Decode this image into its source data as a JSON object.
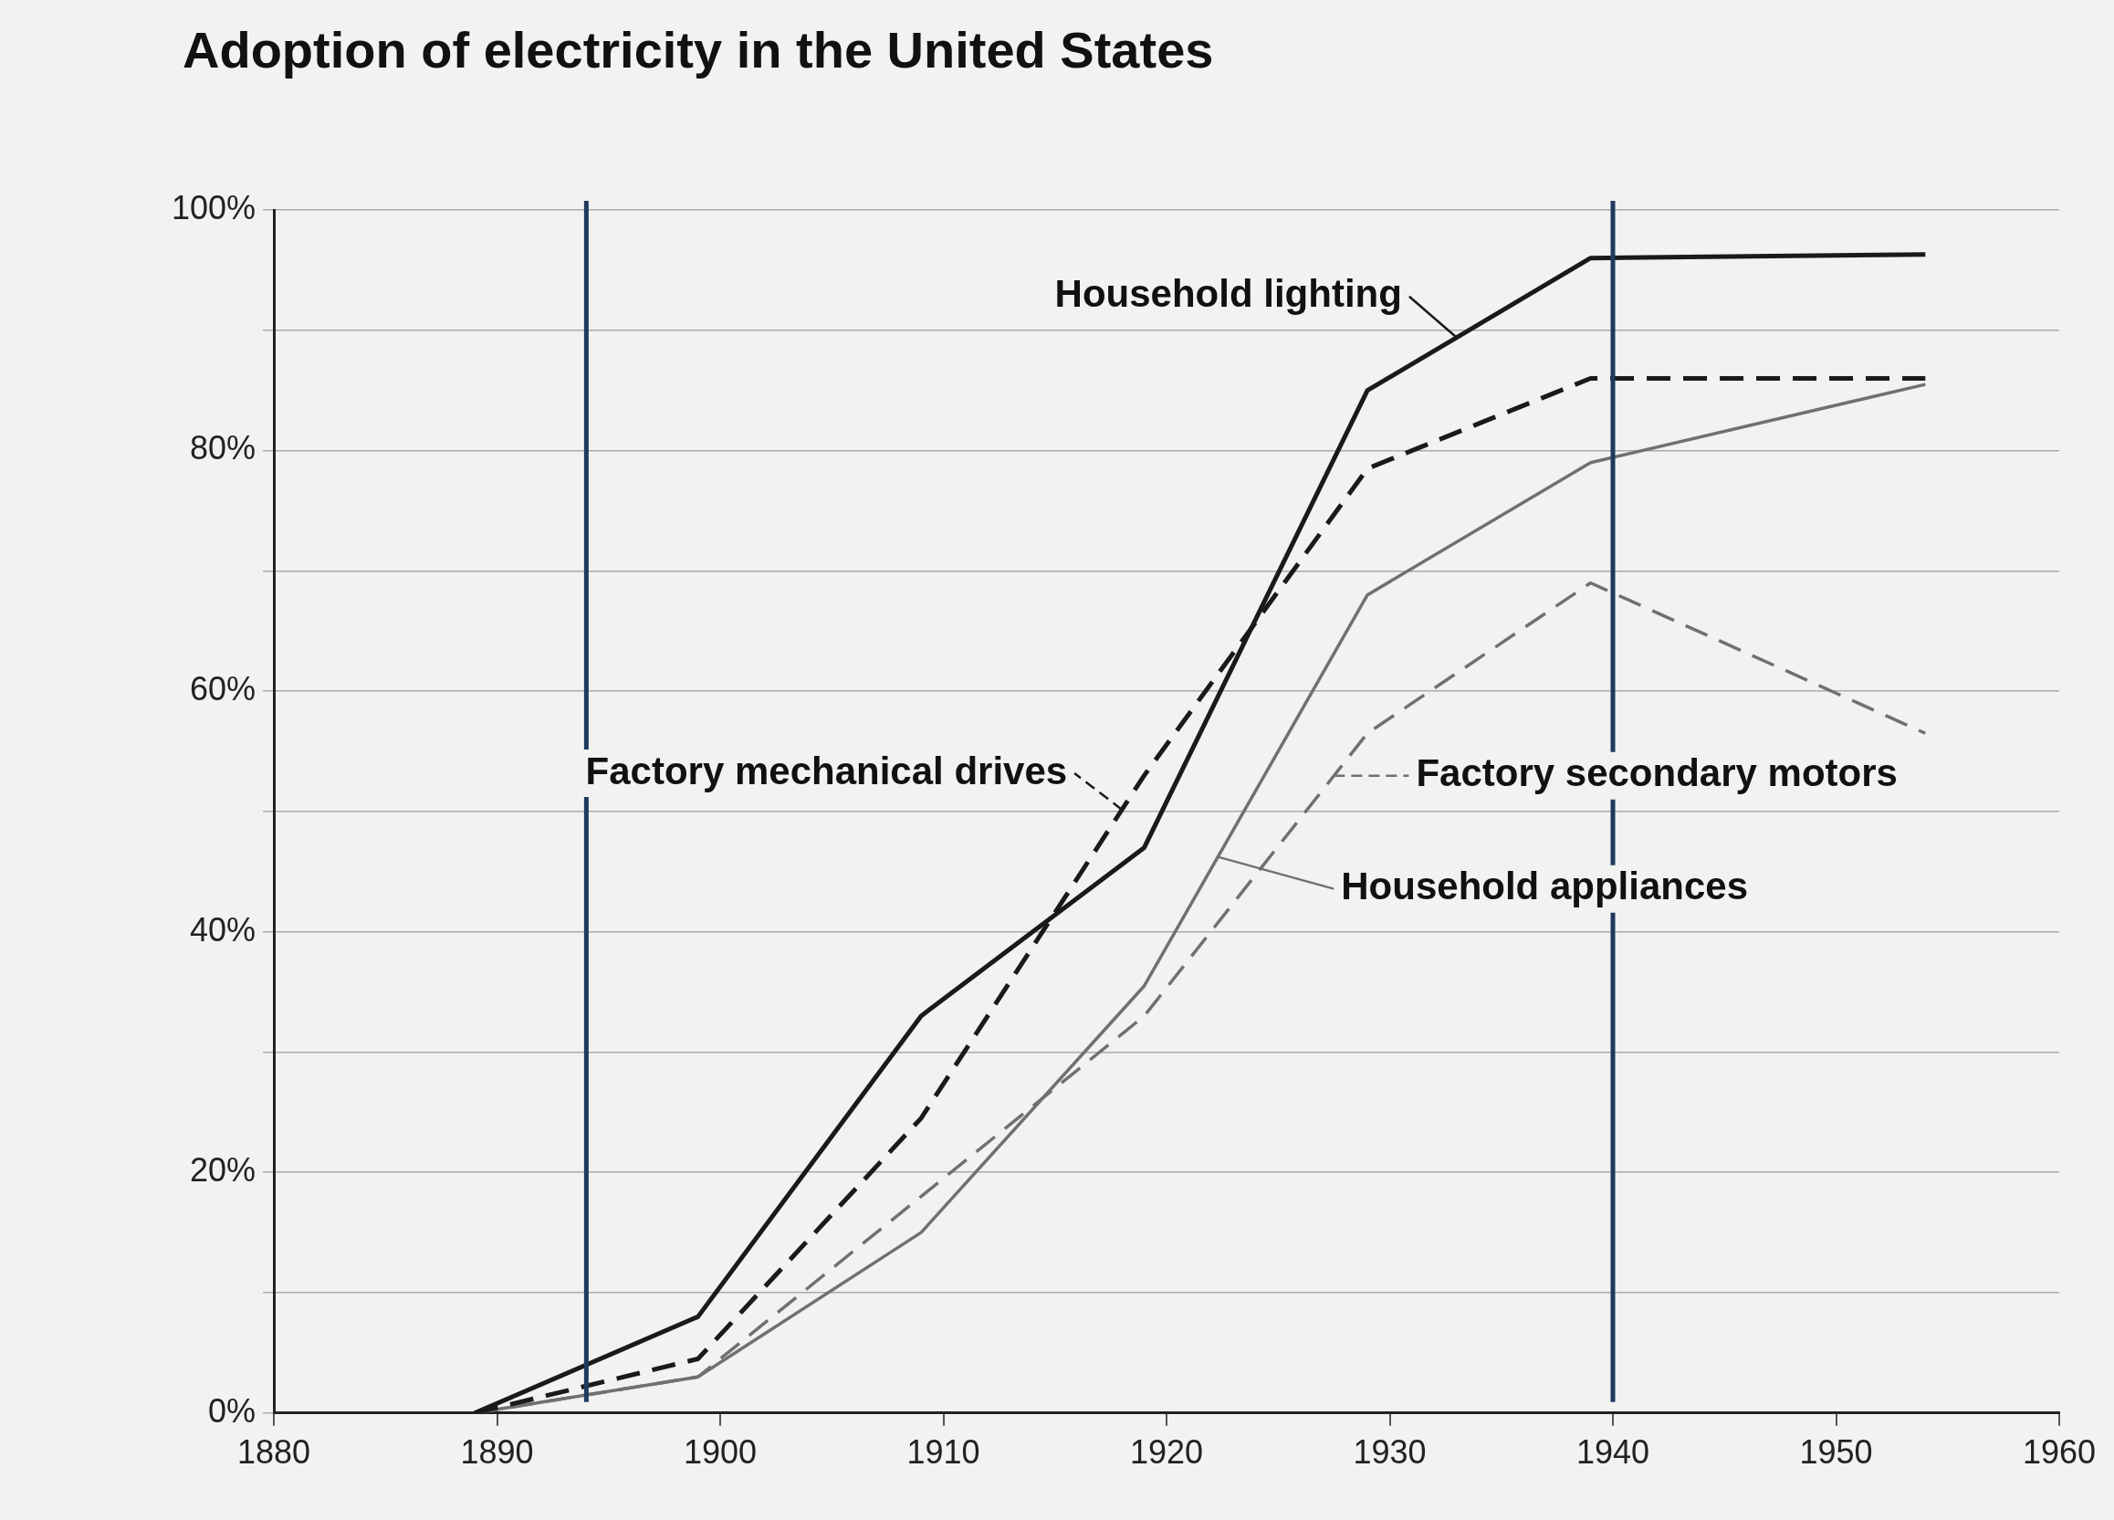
{
  "chart_data": {
    "type": "line",
    "title": "Adoption of electricity in the United States",
    "x": [
      1889,
      1899,
      1909,
      1919,
      1929,
      1939,
      1954
    ],
    "series": [
      {
        "name": "Household lighting",
        "color": "#1a1a1a",
        "line_style": "solid",
        "values": [
          0,
          8,
          33,
          47,
          85,
          96,
          96.3
        ]
      },
      {
        "name": "Factory mechanical drives",
        "color": "#1a1a1a",
        "line_style": "dashed",
        "values": [
          0,
          4.5,
          24.5,
          53,
          78.5,
          86,
          86
        ]
      },
      {
        "name": "Household appliances",
        "color": "#707070",
        "line_style": "solid",
        "values": [
          0,
          3,
          15,
          35.5,
          68,
          79,
          85.5
        ]
      },
      {
        "name": "Factory secondary motors",
        "color": "#707070",
        "line_style": "dashed",
        "values": [
          0,
          3,
          18,
          33,
          56.5,
          69,
          56.5
        ]
      }
    ],
    "xlim": [
      1880,
      1960
    ],
    "xticks": [
      1880,
      1890,
      1900,
      1910,
      1920,
      1930,
      1940,
      1950,
      1960
    ],
    "ylim": [
      0,
      100
    ],
    "yticks": [
      {
        "value": 0,
        "label": "0%"
      },
      {
        "value": 10,
        "label": null
      },
      {
        "value": 20,
        "label": "20%"
      },
      {
        "value": 30,
        "label": null
      },
      {
        "value": 40,
        "label": "40%"
      },
      {
        "value": 50,
        "label": null
      },
      {
        "value": 60,
        "label": "60%"
      },
      {
        "value": 70,
        "label": null
      },
      {
        "value": 80,
        "label": "80%"
      },
      {
        "value": 90,
        "label": null
      },
      {
        "value": 100,
        "label": "100%"
      }
    ],
    "grid": "y",
    "marker": "none",
    "legend": "right",
    "ref_lines": [
      {
        "axis": "x",
        "value": 1894,
        "color": "#1f3a5f"
      },
      {
        "axis": "x",
        "value": 1940,
        "color": "#1f3a5f"
      }
    ]
  }
}
